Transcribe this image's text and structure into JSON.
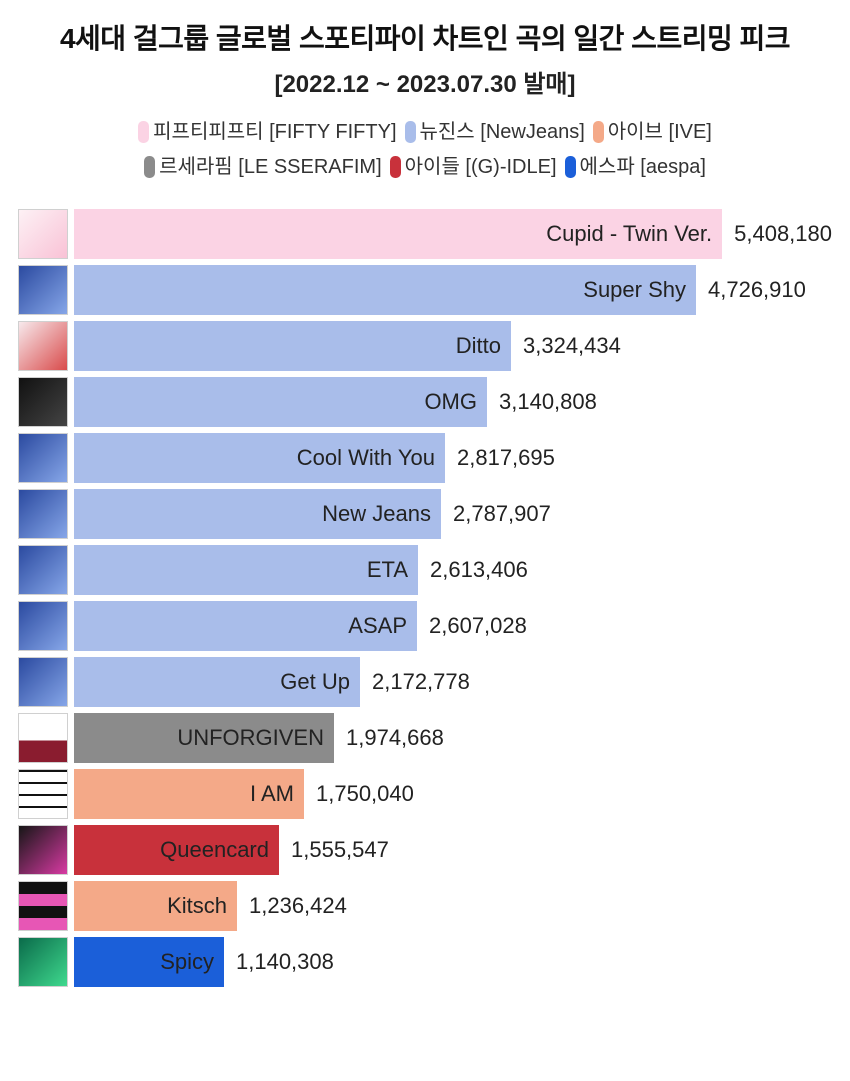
{
  "title": "4세대 걸그룹 글로벌 스포티파이 차트인 곡의 일간 스트리밍 피크",
  "subtitle": "[2022.12 ~ 2023.07.30 발매]",
  "legendRows": [
    [
      {
        "label": "피프티피프티 [FIFTY FIFTY]",
        "color": "#fbd3e4"
      },
      {
        "label": "뉴진스 [NewJeans]",
        "color": "#a9bdea"
      },
      {
        "label": "아이브 [IVE]",
        "color": "#f4a988"
      }
    ],
    [
      {
        "label": "르세라핌 [LE SSERAFIM]",
        "color": "#8b8b8b"
      },
      {
        "label": "아이들 [(G)-IDLE]",
        "color": "#c8313b"
      },
      {
        "label": "에스파 [aespa]",
        "color": "#1b5fd9"
      }
    ]
  ],
  "chart": {
    "type": "bar",
    "maxValue": 5700000,
    "trackWidthPx": 750,
    "barLabelFontSize": 22,
    "valueFontSize": 22,
    "background": "#ffffff",
    "rows": [
      {
        "song": "Cupid - Twin Ver.",
        "value": 5408180,
        "display": "5,408,180",
        "color": "#fbd3e4",
        "thumb": "linear-gradient(135deg,#fdf1f5,#f9c2d6)"
      },
      {
        "song": "Super Shy",
        "value": 4726910,
        "display": "4,726,910",
        "color": "#a9bdea",
        "thumb": "linear-gradient(135deg,#2b4aa0,#86a6e8)"
      },
      {
        "song": "Ditto",
        "value": 3324434,
        "display": "3,324,434",
        "color": "#a9bdea",
        "thumb": "linear-gradient(135deg,#f7e9ec,#d94b4b)"
      },
      {
        "song": "OMG",
        "value": 3140808,
        "display": "3,140,808",
        "color": "#a9bdea",
        "thumb": "linear-gradient(135deg,#111,#444)"
      },
      {
        "song": "Cool With You",
        "value": 2817695,
        "display": "2,817,695",
        "color": "#a9bdea",
        "thumb": "linear-gradient(135deg,#2b4aa0,#86a6e8)"
      },
      {
        "song": "New Jeans",
        "value": 2787907,
        "display": "2,787,907",
        "color": "#a9bdea",
        "thumb": "linear-gradient(135deg,#2b4aa0,#86a6e8)"
      },
      {
        "song": "ETA",
        "value": 2613406,
        "display": "2,613,406",
        "color": "#a9bdea",
        "thumb": "linear-gradient(135deg,#2b4aa0,#86a6e8)"
      },
      {
        "song": "ASAP",
        "value": 2607028,
        "display": "2,607,028",
        "color": "#a9bdea",
        "thumb": "linear-gradient(135deg,#2b4aa0,#86a6e8)"
      },
      {
        "song": "Get Up",
        "value": 2172778,
        "display": "2,172,778",
        "color": "#a9bdea",
        "thumb": "linear-gradient(135deg,#2b4aa0,#86a6e8)"
      },
      {
        "song": "UNFORGIVEN",
        "value": 1974668,
        "display": "1,974,668",
        "color": "#8b8b8b",
        "thumb": "linear-gradient(180deg,#fff 55%,#8a1c2f 55%)"
      },
      {
        "song": "I AM",
        "value": 1750040,
        "display": "1,750,040",
        "color": "#f4a988",
        "thumb": "repeating-linear-gradient(0deg,#fff,#fff 10px,#111 10px,#111 12px)"
      },
      {
        "song": "Queencard",
        "value": 1555547,
        "display": "1,555,547",
        "color": "#c8313b",
        "thumb": "linear-gradient(135deg,#161616,#d83aa3)"
      },
      {
        "song": "Kitsch",
        "value": 1236424,
        "display": "1,236,424",
        "color": "#f4a988",
        "thumb": "repeating-linear-gradient(0deg,#e756b5,#e756b5 12px,#111 12px,#111 24px)"
      },
      {
        "song": "Spicy",
        "value": 1140308,
        "display": "1,140,308",
        "color": "#1b5fd9",
        "thumb": "linear-gradient(135deg,#0a6b4a,#3fd98e)"
      }
    ]
  }
}
